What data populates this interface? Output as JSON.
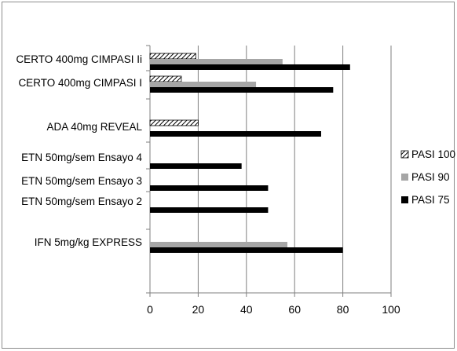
{
  "chart_data": {
    "type": "bar",
    "orientation": "horizontal",
    "title": "",
    "xlabel": "",
    "ylabel": "",
    "xlim": [
      0,
      100
    ],
    "x_ticks": [
      0,
      20,
      40,
      60,
      80,
      100
    ],
    "grid": "vertical",
    "legend_position": "right",
    "categories": [
      "CERTO 400mg CIMPASI Ii",
      "CERTO 400mg CIMPASI I",
      "ADA 40mg REVEAL",
      "ETN 50mg/sem Ensayo 4",
      "ETN 50mg/sem Ensayo 3",
      "ETN  50mg/sem Ensayo 2",
      "IFN  5mg/kg  EXPRESS"
    ],
    "series": [
      {
        "name": "PASI 100",
        "pattern": "hatched",
        "color": "#000000",
        "values": [
          19,
          13,
          20,
          null,
          null,
          null,
          null
        ]
      },
      {
        "name": "PASI 90",
        "pattern": "solid",
        "color": "#a6a6a6",
        "values": [
          55,
          44,
          null,
          null,
          null,
          null,
          57
        ]
      },
      {
        "name": "PASI 75",
        "pattern": "solid",
        "color": "#000000",
        "values": [
          83,
          76,
          71,
          38,
          49,
          49,
          80
        ]
      }
    ]
  }
}
